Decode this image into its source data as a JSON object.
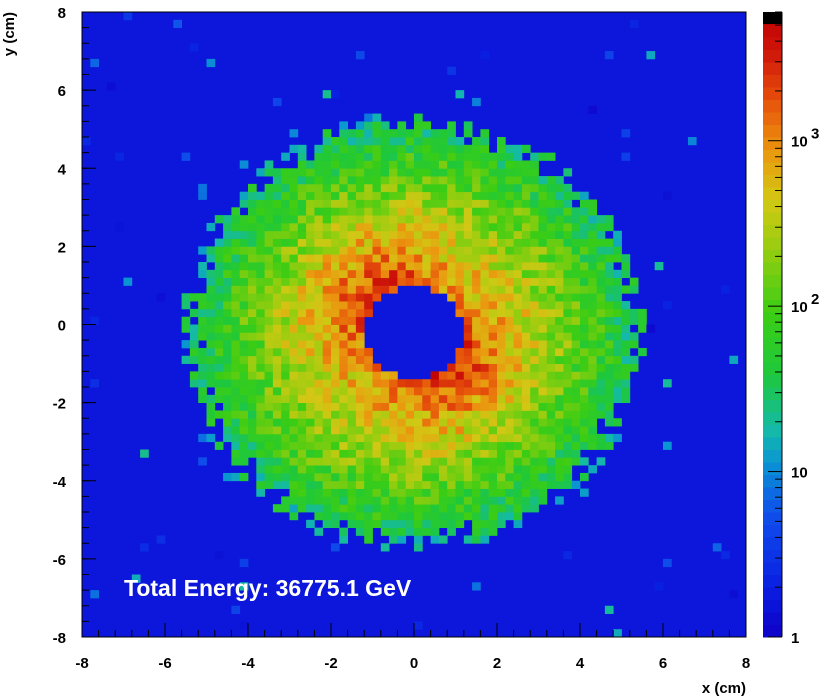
{
  "chart_data": {
    "type": "heatmap",
    "title": "",
    "xlabel": "x (cm)",
    "ylabel": "y (cm)",
    "xlim": [
      -8,
      8
    ],
    "ylim": [
      -8,
      8
    ],
    "x_ticks": [
      -8,
      -6,
      -4,
      -2,
      0,
      2,
      4,
      6,
      8
    ],
    "y_ticks": [
      -8,
      -6,
      -4,
      -2,
      0,
      2,
      4,
      6,
      8
    ],
    "x_tick_labels": [
      "-8",
      "-6",
      "-4",
      "-2",
      "0",
      "2",
      "4",
      "6",
      "8"
    ],
    "y_tick_labels": [
      "-8",
      "-6",
      "-4",
      "-2",
      "0",
      "2",
      "4",
      "6",
      "8"
    ],
    "bins": {
      "nx": 80,
      "ny": 80,
      "bin_width_cm": 0.2
    },
    "colorbar": {
      "scale": "log",
      "range": [
        1,
        6000
      ],
      "tick_labels": [
        {
          "value": 1,
          "label": "1"
        },
        {
          "value": 10,
          "label": "10"
        },
        {
          "value": 100,
          "label": "10",
          "exponent": "2"
        },
        {
          "value": 1000,
          "label": "10",
          "exponent": "3"
        }
      ]
    },
    "distribution": {
      "shape": "annulus",
      "center": [
        0.0,
        -0.2
      ],
      "hole_radius_cm": 1.2,
      "outer_radius_cm": 5.3,
      "peak_value": 6000,
      "peak_region": "inner rim near radius 1.3 cm, strongest at upper-left and lower-right",
      "background_value": 1
    },
    "annotation": "Total Energy: 36775.1 GeV"
  }
}
